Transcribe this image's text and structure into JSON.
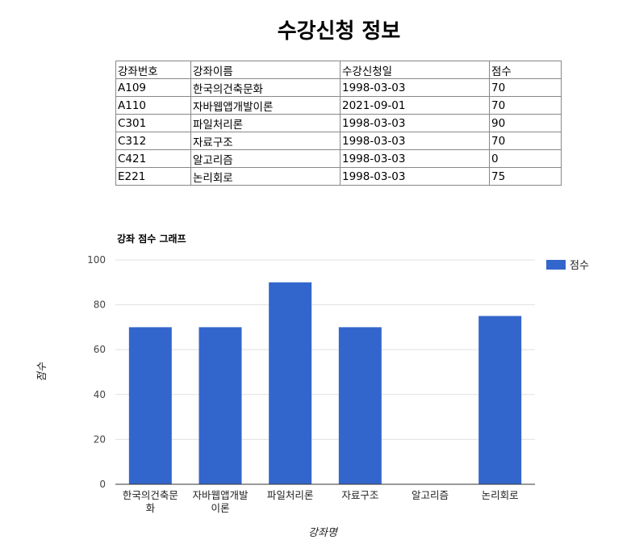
{
  "page": {
    "title": "수강신청 정보"
  },
  "table": {
    "headers": [
      "강좌번호",
      "강좌이름",
      "수강신청일",
      "점수"
    ],
    "rows": [
      [
        "A109",
        "한국의건축문화",
        "1998-03-03",
        "70"
      ],
      [
        "A110",
        "자바웹앱개발이론",
        "2021-09-01",
        "70"
      ],
      [
        "C301",
        "파일처리론",
        "1998-03-03",
        "90"
      ],
      [
        "C312",
        "자료구조",
        "1998-03-03",
        "70"
      ],
      [
        "C421",
        "알고리즘",
        "1998-03-03",
        "0"
      ],
      [
        "E221",
        "논리회로",
        "1998-03-03",
        "75"
      ]
    ]
  },
  "chart_data": {
    "type": "bar",
    "title": "강좌 점수 그래프",
    "xlabel": "강좌명",
    "ylabel": "점수",
    "categories": [
      "한국의건축문화",
      "자바웹앱개발이론",
      "파일처리론",
      "자료구조",
      "알고리즘",
      "논리회로"
    ],
    "category_label_lines": [
      [
        "한국의건축문",
        "화"
      ],
      [
        "자바웹앱개발",
        "이론"
      ],
      [
        "파일처리론"
      ],
      [
        "자료구조"
      ],
      [
        "알고리즘"
      ],
      [
        "논리회로"
      ]
    ],
    "series": [
      {
        "name": "점수",
        "values": [
          70,
          70,
          90,
          70,
          0,
          75
        ],
        "color": "#3366cc"
      }
    ],
    "ylim": [
      0,
      100
    ],
    "yticks": [
      0,
      20,
      40,
      60,
      80,
      100
    ],
    "grid": true,
    "legend": "right"
  }
}
